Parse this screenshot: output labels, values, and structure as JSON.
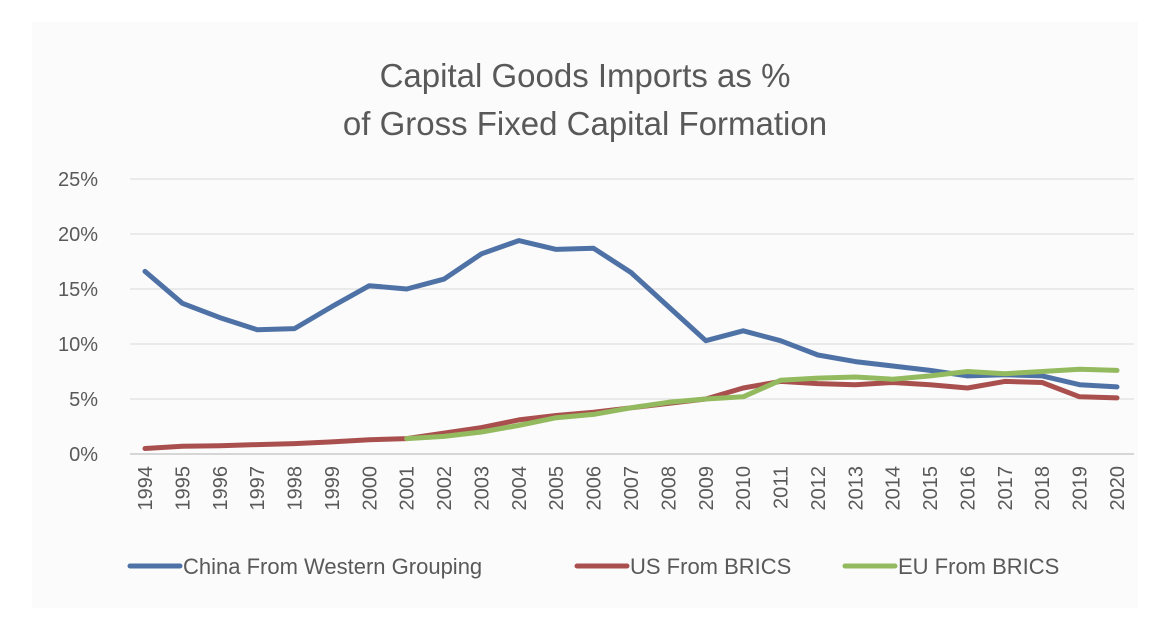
{
  "chart_data": {
    "type": "line",
    "title": [
      "Capital Goods Imports as %",
      "of Gross Fixed Capital Formation"
    ],
    "xlabel": "",
    "ylabel": "",
    "ylim": [
      0,
      25
    ],
    "ytick_values": [
      0,
      5,
      10,
      15,
      20,
      25
    ],
    "ytick_labels": [
      "0%",
      "5%",
      "10%",
      "15%",
      "20%",
      "25%"
    ],
    "grid": true,
    "legend_position": "bottom",
    "categories": [
      "1994",
      "1995",
      "1996",
      "1997",
      "1998",
      "1999",
      "2000",
      "2001",
      "2002",
      "2003",
      "2004",
      "2005",
      "2006",
      "2007",
      "2008",
      "2009",
      "2010",
      "2011",
      "2012",
      "2013",
      "2014",
      "2015",
      "2016",
      "2017",
      "2018",
      "2019",
      "2020"
    ],
    "series": [
      {
        "name": "China From Western Grouping",
        "color": "#4f72a6",
        "values": [
          16.6,
          13.7,
          12.4,
          11.3,
          11.4,
          13.4,
          15.3,
          15.0,
          15.9,
          18.2,
          19.4,
          18.6,
          18.7,
          16.5,
          13.4,
          10.3,
          11.2,
          10.3,
          9.0,
          8.4,
          8.0,
          7.6,
          7.1,
          7.2,
          7.1,
          6.3,
          6.1
        ]
      },
      {
        "name": "US From BRICS",
        "color": "#a9504f",
        "values": [
          0.5,
          0.7,
          0.75,
          0.85,
          0.95,
          1.1,
          1.3,
          1.4,
          1.9,
          2.4,
          3.1,
          3.5,
          3.8,
          4.2,
          4.6,
          5.0,
          6.0,
          6.6,
          6.4,
          6.3,
          6.5,
          6.3,
          6.0,
          6.6,
          6.5,
          5.2,
          5.1
        ]
      },
      {
        "name": "EU From BRICS",
        "color": "#93ba5f",
        "values": [
          null,
          null,
          null,
          null,
          null,
          null,
          null,
          1.4,
          1.6,
          2.0,
          2.6,
          3.3,
          3.6,
          4.2,
          4.7,
          5.0,
          5.2,
          6.7,
          6.9,
          7.0,
          6.8,
          7.1,
          7.5,
          7.3,
          7.5,
          7.7,
          7.6
        ]
      }
    ]
  }
}
